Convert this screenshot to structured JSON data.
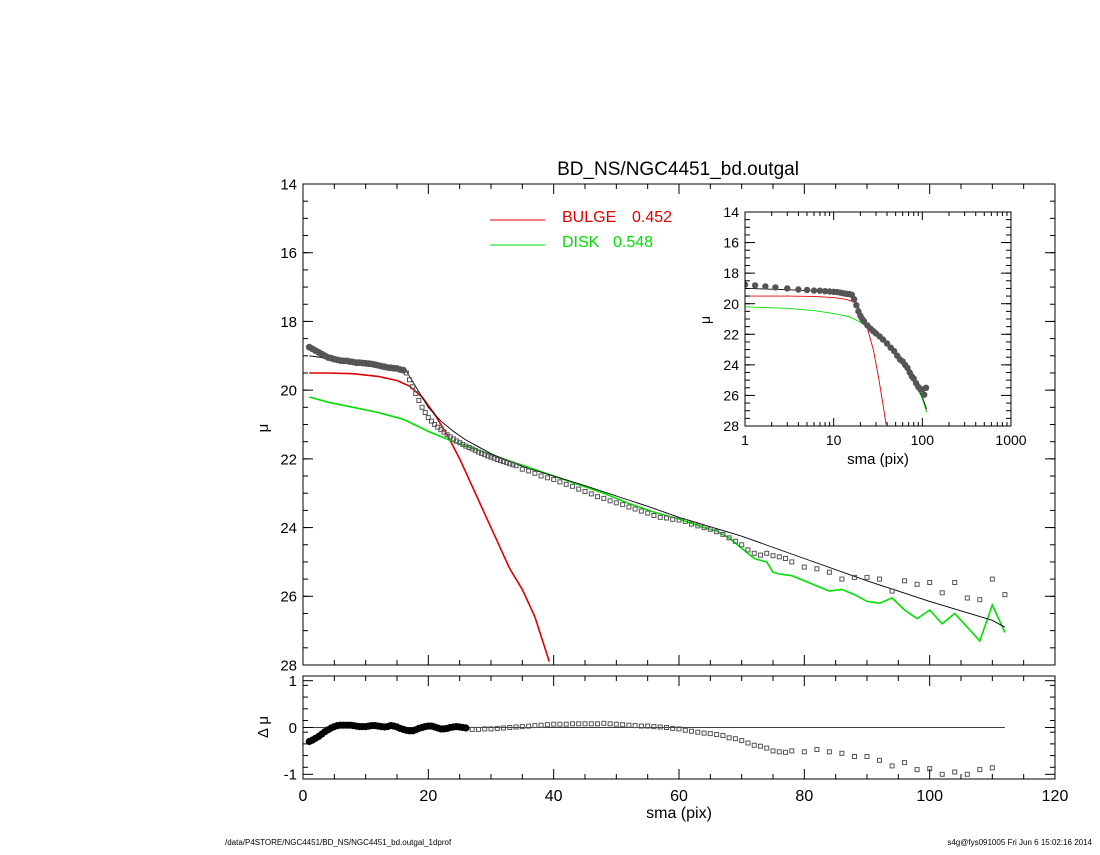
{
  "chart_data": [
    {
      "id": "main",
      "type": "line+scatter",
      "title": "BD_NS/NGC4451_bd.outgal",
      "ylabel": "μ",
      "xlim": [
        0,
        120
      ],
      "ylim": [
        28,
        14
      ],
      "yticks": [
        "14",
        "16",
        "18",
        "20",
        "22",
        "24",
        "26",
        "28"
      ],
      "legend": [
        {
          "label": "BULGE",
          "value": "0.452",
          "color": "#e00000"
        },
        {
          "label": "DISK",
          "value": "0.548",
          "color": "#00e000"
        }
      ],
      "series": [
        {
          "role": "bulge",
          "color": "#e00000",
          "x": [
            1,
            4,
            8,
            12,
            15,
            17,
            19,
            21,
            23,
            25,
            27,
            29,
            31,
            33,
            35,
            37,
            39.3
          ],
          "y": [
            19.5,
            19.5,
            19.52,
            19.6,
            19.72,
            19.88,
            20.2,
            20.7,
            21.3,
            22.0,
            22.8,
            23.6,
            24.4,
            25.2,
            25.8,
            26.6,
            27.9
          ]
        },
        {
          "role": "disk",
          "color": "#00e000",
          "x": [
            1,
            4,
            8,
            12,
            16,
            20,
            24,
            28,
            32,
            36,
            40,
            44,
            48,
            52,
            56,
            60,
            64,
            66,
            68,
            70,
            72,
            74,
            75,
            76,
            78,
            80,
            82,
            84,
            86,
            88,
            90,
            92,
            94,
            96,
            98,
            100,
            102,
            104,
            106,
            108,
            110,
            112
          ],
          "y": [
            20.2,
            20.35,
            20.5,
            20.65,
            20.85,
            21.2,
            21.5,
            21.75,
            22.0,
            22.25,
            22.5,
            22.75,
            23.0,
            23.3,
            23.55,
            23.75,
            24.0,
            24.1,
            24.3,
            24.6,
            24.9,
            25.0,
            25.3,
            25.35,
            25.4,
            25.55,
            25.7,
            25.85,
            25.8,
            25.95,
            26.15,
            26.2,
            26.05,
            26.4,
            26.65,
            26.4,
            26.8,
            26.5,
            26.9,
            27.3,
            26.25,
            27.05
          ]
        },
        {
          "role": "model-total",
          "color": "#000000",
          "x": [
            1,
            3,
            5,
            7,
            9,
            11,
            13,
            15,
            16.5,
            18,
            20,
            22,
            24,
            26,
            28,
            30,
            32,
            34,
            36,
            40,
            45,
            50,
            55,
            60,
            70,
            80,
            90,
            100,
            110,
            112
          ],
          "y": [
            19.0,
            19.05,
            19.12,
            19.15,
            19.18,
            19.22,
            19.3,
            19.35,
            19.45,
            19.9,
            20.5,
            20.9,
            21.2,
            21.45,
            21.65,
            21.85,
            22.0,
            22.15,
            22.28,
            22.5,
            22.78,
            23.08,
            23.38,
            23.7,
            24.25,
            24.9,
            25.55,
            26.15,
            26.7,
            26.9
          ]
        },
        {
          "role": "data-dense",
          "color": "#555555",
          "x": [
            1,
            1.5,
            2,
            2.5,
            3,
            3.5,
            4,
            4.5,
            5,
            5.5,
            6,
            6.5,
            7,
            7.5,
            8,
            8.5,
            9,
            9.5,
            10,
            10.5,
            11,
            11.5,
            12,
            12.5,
            13,
            13.5,
            14,
            14.5,
            15,
            15.5,
            16
          ],
          "y": [
            18.75,
            18.8,
            18.85,
            18.9,
            18.95,
            19.0,
            19.05,
            19.07,
            19.1,
            19.12,
            19.14,
            19.15,
            19.15,
            19.17,
            19.18,
            19.2,
            19.2,
            19.21,
            19.22,
            19.23,
            19.24,
            19.26,
            19.28,
            19.3,
            19.32,
            19.34,
            19.35,
            19.36,
            19.37,
            19.4,
            19.42
          ]
        },
        {
          "role": "data-points",
          "color": "#555555",
          "x": [
            16.5,
            17,
            17.5,
            18,
            18.5,
            19,
            19.5,
            20,
            20.5,
            21,
            21.5,
            22,
            22.5,
            23,
            23.5,
            24,
            24.5,
            25,
            25.5,
            26,
            26.5,
            27,
            27.5,
            28,
            28.5,
            29,
            29.5,
            30,
            30.5,
            31,
            31.5,
            32,
            32.5,
            33,
            33.5,
            34,
            35,
            36,
            37,
            38,
            39,
            40,
            41,
            42,
            43,
            44,
            45,
            46,
            47,
            48,
            49,
            50,
            51,
            52,
            53,
            54,
            55,
            56,
            57,
            58,
            59,
            60,
            61,
            62,
            63,
            64,
            65,
            66,
            67,
            68,
            69,
            70,
            71,
            72,
            73,
            74,
            75,
            76,
            77,
            78,
            80,
            82,
            84,
            86,
            88,
            90,
            92,
            94,
            96,
            98,
            100,
            102,
            104,
            106,
            108,
            110,
            112
          ],
          "y": [
            19.5,
            19.7,
            19.9,
            20.1,
            20.3,
            20.5,
            20.65,
            20.8,
            20.9,
            21.0,
            21.08,
            21.15,
            21.22,
            21.3,
            21.36,
            21.42,
            21.48,
            21.53,
            21.58,
            21.63,
            21.67,
            21.71,
            21.75,
            21.8,
            21.84,
            21.88,
            21.92,
            21.95,
            21.98,
            22.02,
            22.05,
            22.08,
            22.11,
            22.14,
            22.17,
            22.2,
            22.3,
            22.35,
            22.42,
            22.5,
            22.55,
            22.6,
            22.67,
            22.74,
            22.8,
            22.88,
            22.95,
            23.02,
            23.1,
            23.15,
            23.22,
            23.28,
            23.33,
            23.4,
            23.46,
            23.52,
            23.58,
            23.65,
            23.7,
            23.72,
            23.76,
            23.78,
            23.82,
            23.9,
            23.95,
            24.0,
            24.05,
            24.12,
            24.2,
            24.3,
            24.4,
            24.5,
            24.65,
            24.75,
            24.8,
            24.75,
            24.82,
            24.85,
            24.9,
            25.0,
            25.15,
            25.2,
            25.3,
            25.5,
            25.45,
            25.45,
            25.5,
            25.85,
            25.55,
            25.65,
            25.6,
            25.9,
            25.6,
            26.05,
            26.1,
            25.5,
            25.95
          ]
        }
      ]
    },
    {
      "id": "inset",
      "type": "line+scatter",
      "xlabel": "sma (pix)",
      "ylabel": "μ",
      "xscale": "log",
      "xlim": [
        1,
        1000
      ],
      "ylim": [
        28,
        14
      ],
      "xticks": [
        "1",
        "10",
        "100",
        "1000"
      ],
      "yticks": [
        "14",
        "16",
        "18",
        "20",
        "22",
        "24",
        "26",
        "28"
      ],
      "series": [
        {
          "role": "bulge",
          "color": "#e00000",
          "x": [
            1,
            3,
            6,
            10,
            14,
            17,
            20,
            24,
            28,
            32,
            36,
            39
          ],
          "y": [
            19.5,
            19.5,
            19.52,
            19.6,
            19.72,
            19.9,
            20.7,
            21.6,
            23.0,
            24.8,
            26.6,
            27.9
          ]
        },
        {
          "role": "disk",
          "color": "#00e000",
          "x": [
            1,
            3,
            6,
            10,
            15,
            20,
            30,
            45,
            60,
            80,
            100,
            112
          ],
          "y": [
            20.2,
            20.3,
            20.45,
            20.65,
            20.85,
            21.2,
            22.0,
            23.0,
            23.75,
            25.1,
            26.2,
            27.1
          ]
        },
        {
          "role": "model-total",
          "color": "#000000",
          "x": [
            1,
            3,
            6,
            10,
            15,
            17,
            20,
            25,
            30,
            40,
            50,
            60,
            80,
            100,
            112
          ],
          "y": [
            19.0,
            19.08,
            19.17,
            19.25,
            19.38,
            19.6,
            20.5,
            21.5,
            21.9,
            22.5,
            23.1,
            23.7,
            24.9,
            26.1,
            26.9
          ]
        },
        {
          "role": "data-points",
          "color": "#555555",
          "x": [
            1,
            1.3,
            1.7,
            2.2,
            3,
            4,
            5,
            6,
            7,
            8,
            9,
            10,
            11,
            12,
            13,
            14,
            15,
            16,
            17,
            18,
            19,
            20,
            21,
            22,
            24,
            26,
            28,
            30,
            33,
            36,
            40,
            44,
            48,
            52,
            56,
            60,
            64,
            68,
            72,
            76,
            80,
            85,
            90,
            95,
            100,
            105,
            110
          ],
          "y": [
            18.75,
            18.8,
            18.87,
            18.93,
            19.0,
            19.07,
            19.1,
            19.14,
            19.15,
            19.18,
            19.2,
            19.22,
            19.24,
            19.28,
            19.32,
            19.35,
            19.37,
            19.42,
            19.7,
            20.1,
            20.5,
            20.8,
            21.0,
            21.15,
            21.42,
            21.63,
            21.8,
            21.95,
            22.14,
            22.35,
            22.6,
            22.88,
            23.1,
            23.4,
            23.65,
            23.78,
            24.0,
            24.2,
            24.5,
            24.75,
            24.9,
            25.2,
            25.45,
            25.6,
            25.6,
            25.95,
            25.5
          ]
        }
      ]
    },
    {
      "id": "residual",
      "type": "scatter",
      "xlabel": "sma (pix)",
      "ylabel": "Δ μ",
      "xlim": [
        0,
        120
      ],
      "ylim": [
        -1.1,
        1.1
      ],
      "xticks": [
        "0",
        "20",
        "40",
        "60",
        "80",
        "100",
        "120"
      ],
      "yticks": [
        "1",
        "0",
        "-1"
      ],
      "zero_line": {
        "x": [
          0,
          112
        ],
        "y": 0
      },
      "series": [
        {
          "role": "residual-dense",
          "color": "#000000",
          "x": [
            1,
            1.5,
            2,
            2.5,
            3,
            3.5,
            4,
            4.5,
            5,
            5.5,
            6,
            6.5,
            7,
            7.5,
            8,
            8.5,
            9,
            9.5,
            10,
            10.5,
            11,
            11.5,
            12,
            12.5,
            13,
            13.5,
            14,
            14.5,
            15,
            15.5,
            16,
            16.5,
            17,
            17.5,
            18,
            18.5,
            19,
            19.5,
            20,
            20.5,
            21,
            21.5,
            22,
            22.5,
            23,
            23.5,
            24,
            24.5,
            25,
            25.5,
            26
          ],
          "y": [
            -0.3,
            -0.27,
            -0.23,
            -0.19,
            -0.14,
            -0.09,
            -0.05,
            -0.01,
            0.02,
            0.04,
            0.05,
            0.05,
            0.05,
            0.05,
            0.04,
            0.03,
            0.02,
            0.02,
            0.02,
            0.03,
            0.04,
            0.04,
            0.03,
            0.02,
            0.01,
            0.02,
            0.04,
            0.03,
            0.01,
            -0.02,
            -0.04,
            -0.06,
            -0.07,
            -0.07,
            -0.05,
            -0.02,
            0.0,
            0.02,
            0.03,
            0.03,
            0.01,
            -0.01,
            -0.03,
            -0.03,
            -0.02,
            0.0,
            0.01,
            0.02,
            0.01,
            0.0,
            -0.01
          ]
        },
        {
          "role": "residual-points",
          "color": "#555555",
          "x": [
            27,
            28,
            29,
            30,
            31,
            32,
            33,
            34,
            35,
            36,
            37,
            38,
            39,
            40,
            41,
            42,
            43,
            44,
            45,
            46,
            47,
            48,
            49,
            50,
            51,
            52,
            53,
            54,
            55,
            56,
            57,
            58,
            59,
            60,
            61,
            62,
            63,
            64,
            65,
            66,
            67,
            68,
            69,
            70,
            71,
            72,
            73,
            74,
            75,
            76,
            77,
            78,
            80,
            82,
            84,
            86,
            88,
            90,
            92,
            94,
            96,
            98,
            100,
            102,
            104,
            106,
            108,
            110
          ],
          "y": [
            -0.04,
            -0.04,
            -0.03,
            -0.03,
            -0.02,
            -0.01,
            0.0,
            0.01,
            0.02,
            0.03,
            0.04,
            0.05,
            0.06,
            0.07,
            0.07,
            0.07,
            0.08,
            0.08,
            0.08,
            0.08,
            0.08,
            0.09,
            0.08,
            0.07,
            0.06,
            0.05,
            0.04,
            0.03,
            0.03,
            0.02,
            0.01,
            0.0,
            -0.02,
            -0.03,
            -0.06,
            -0.08,
            -0.1,
            -0.12,
            -0.13,
            -0.15,
            -0.17,
            -0.22,
            -0.24,
            -0.28,
            -0.33,
            -0.38,
            -0.4,
            -0.44,
            -0.5,
            -0.52,
            -0.53,
            -0.5,
            -0.52,
            -0.47,
            -0.52,
            -0.55,
            -0.62,
            -0.62,
            -0.7,
            -0.82,
            -0.75,
            -0.9,
            -0.88,
            -1.0,
            -0.95,
            -1.0,
            -0.9,
            -0.86
          ]
        }
      ]
    }
  ],
  "footer": {
    "left": "/data/P4STORE/NGC4451/BD_NS/NGC4451_bd.outgal_1dprof",
    "right": "s4g@fys091005  Fri Jun  6 15:02:16 2014"
  }
}
